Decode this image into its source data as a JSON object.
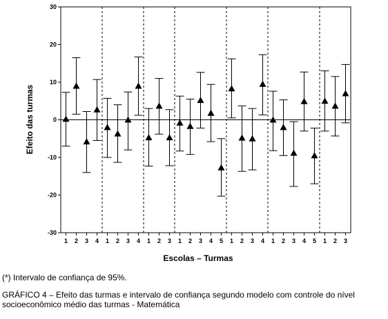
{
  "chart_data": {
    "type": "scatter",
    "ylabel": "Efeito das turmas",
    "xlabel": "Escolas – Turmas",
    "ylim": [
      -30,
      30
    ],
    "yticks": [
      30,
      20,
      10,
      0,
      -10,
      -20,
      -30
    ],
    "reference_line_y": 0,
    "marker": "triangle",
    "error_bars": "confidence interval 95%",
    "groups": [
      {
        "points": [
          {
            "label": "1",
            "value": 0.2,
            "low": -7.0,
            "high": 7.3
          },
          {
            "label": "2",
            "value": 9.0,
            "low": 1.5,
            "high": 16.5
          },
          {
            "label": "3",
            "value": -5.8,
            "low": -14.0,
            "high": 2.2
          },
          {
            "label": "4",
            "value": 2.7,
            "low": -5.5,
            "high": 10.7
          }
        ]
      },
      {
        "points": [
          {
            "label": "1",
            "value": -2.0,
            "low": -10.0,
            "high": 5.7
          },
          {
            "label": "2",
            "value": -3.7,
            "low": -11.3,
            "high": 4.0
          },
          {
            "label": "3",
            "value": 0.0,
            "low": -8.0,
            "high": 7.4
          },
          {
            "label": "4",
            "value": 9.0,
            "low": 1.2,
            "high": 16.7
          }
        ]
      },
      {
        "points": [
          {
            "label": "1",
            "value": -4.7,
            "low": -12.3,
            "high": 3.0
          },
          {
            "label": "2",
            "value": 3.7,
            "low": -3.8,
            "high": 11.0
          },
          {
            "label": "3",
            "value": -4.7,
            "low": -12.2,
            "high": 2.7
          }
        ]
      },
      {
        "points": [
          {
            "label": "1",
            "value": -0.8,
            "low": -8.3,
            "high": 6.3
          },
          {
            "label": "2",
            "value": -1.7,
            "low": -9.2,
            "high": 5.5
          },
          {
            "label": "3",
            "value": 5.2,
            "low": -2.2,
            "high": 12.6
          },
          {
            "label": "4",
            "value": 1.8,
            "low": -5.8,
            "high": 9.4
          },
          {
            "label": "5",
            "value": -12.7,
            "low": -20.3,
            "high": -5.0
          }
        ]
      },
      {
        "points": [
          {
            "label": "1",
            "value": 8.3,
            "low": 0.5,
            "high": 16.2
          },
          {
            "label": "2",
            "value": -4.8,
            "low": -13.7,
            "high": 3.7
          },
          {
            "label": "3",
            "value": -5.0,
            "low": -13.3,
            "high": 3.0
          },
          {
            "label": "4",
            "value": 9.5,
            "low": 1.3,
            "high": 17.3
          }
        ]
      },
      {
        "points": [
          {
            "label": "1",
            "value": 0.0,
            "low": -8.2,
            "high": 7.6
          },
          {
            "label": "2",
            "value": -2.0,
            "low": -9.5,
            "high": 5.3
          },
          {
            "label": "3",
            "value": -8.8,
            "low": -17.7,
            "high": -0.5
          },
          {
            "label": "4",
            "value": 4.9,
            "low": -3.0,
            "high": 12.7
          },
          {
            "label": "5",
            "value": -9.5,
            "low": -17.0,
            "high": -2.2
          }
        ]
      },
      {
        "points": [
          {
            "label": "1",
            "value": 5.0,
            "low": -3.0,
            "high": 13.0
          },
          {
            "label": "2",
            "value": 3.7,
            "low": -4.3,
            "high": 11.5
          },
          {
            "label": "3",
            "value": 7.0,
            "low": -0.8,
            "high": 14.7
          }
        ]
      }
    ]
  },
  "note": "(*) Intervalo de confiança de 95%.",
  "caption": "GRÁFICO 4 – Efeito das turmas e intervalo de confiança segundo modelo com controle do nível socioeconômico médio das turmas - Matemática"
}
